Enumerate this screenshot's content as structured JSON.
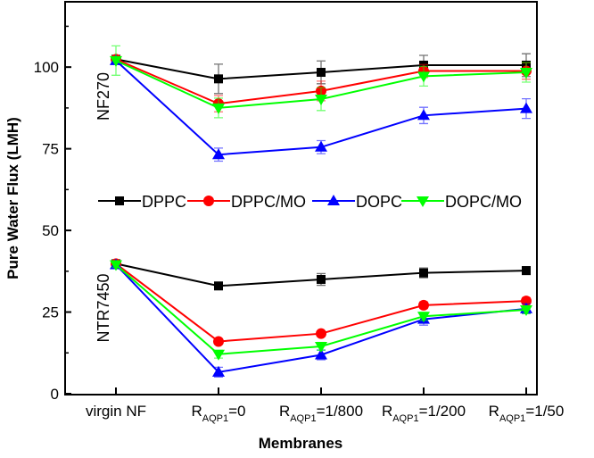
{
  "chart_data": {
    "type": "line",
    "title": "",
    "xlabel": "Membranes",
    "ylabel": "Pure Water Flux (LMH)",
    "ylim": [
      0,
      120
    ],
    "yticks": [
      0,
      25,
      50,
      75,
      100
    ],
    "ytick_labels": [
      "0",
      "25",
      "50",
      "75",
      "100"
    ],
    "categories": [
      {
        "main": "virgin NF",
        "sub": "",
        "tail": ""
      },
      {
        "main": "R",
        "sub": "AQP1",
        "tail": "=0"
      },
      {
        "main": "R",
        "sub": "AQP1",
        "tail": "=1/800"
      },
      {
        "main": "R",
        "sub": "AQP1",
        "tail": "=1/200"
      },
      {
        "main": "R",
        "sub": "AQP1",
        "tail": "=1/50"
      }
    ],
    "annotations": [
      "NF270",
      "NTR7450"
    ],
    "legend": {
      "placement": "center",
      "entries": [
        "DPPC",
        "DPPC/MO",
        "DOPC",
        "DOPC/MO"
      ]
    },
    "groups": [
      {
        "name": "NF270",
        "series": [
          {
            "name": "DPPC",
            "color": "#000000",
            "marker": "square",
            "values": [
              102.4,
              96.4,
              98.4,
              100.6,
              100.6
            ],
            "yerr": [
              1.0,
              4.5,
              3.5,
              3.0,
              3.5
            ]
          },
          {
            "name": "DPPC/MO",
            "color": "#ff0000",
            "marker": "circle",
            "values": [
              102.4,
              88.8,
              92.7,
              98.8,
              98.8
            ],
            "yerr": [
              1.0,
              2.5,
              3.0,
              2.0,
              2.5
            ]
          },
          {
            "name": "DOPC",
            "color": "#0000ff",
            "marker": "triangle-up",
            "values": [
              102.0,
              73.2,
              75.5,
              85.2,
              87.3
            ],
            "yerr": [
              1.0,
              2.0,
              2.0,
              2.5,
              3.0
            ]
          },
          {
            "name": "DOPC/MO",
            "color": "#00ff00",
            "marker": "triangle-down",
            "values": [
              102.0,
              87.5,
              90.2,
              97.2,
              98.4
            ],
            "yerr": [
              4.5,
              3.0,
              3.5,
              3.0,
              3.0
            ]
          }
        ]
      },
      {
        "name": "NTR7450",
        "series": [
          {
            "name": "DPPC",
            "color": "#000000",
            "marker": "square",
            "values": [
              39.8,
              33.0,
              35.0,
              37.0,
              37.7
            ],
            "yerr": [
              0.8,
              0.8,
              1.8,
              1.5,
              1.2
            ]
          },
          {
            "name": "DPPC/MO",
            "color": "#ff0000",
            "marker": "circle",
            "values": [
              39.8,
              16.0,
              18.4,
              27.1,
              28.4
            ],
            "yerr": [
              0.8,
              0.8,
              0.8,
              1.0,
              1.0
            ]
          },
          {
            "name": "DOPC",
            "color": "#0000ff",
            "marker": "triangle-up",
            "values": [
              39.5,
              6.6,
              11.9,
              22.8,
              26.0
            ],
            "yerr": [
              0.8,
              1.5,
              1.5,
              1.8,
              1.5
            ]
          },
          {
            "name": "DOPC/MO",
            "color": "#00ff00",
            "marker": "triangle-down",
            "values": [
              39.5,
              12.1,
              14.5,
              23.7,
              25.7
            ],
            "yerr": [
              0.8,
              1.2,
              1.2,
              1.2,
              1.2
            ]
          }
        ]
      }
    ]
  }
}
